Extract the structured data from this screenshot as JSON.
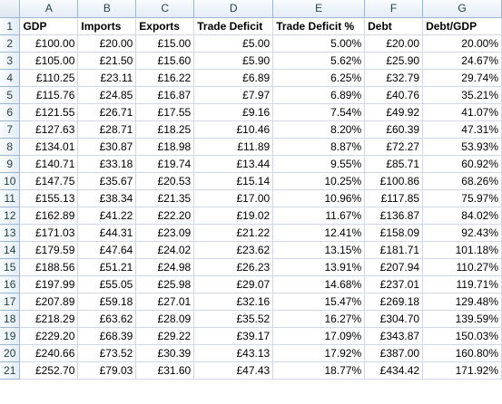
{
  "columns": [
    "A",
    "B",
    "C",
    "D",
    "E",
    "F",
    "G"
  ],
  "headers": [
    "GDP",
    "Imports",
    "Exports",
    "Trade Deficit",
    "Trade Deficit %",
    "Debt",
    "Debt/GDP"
  ],
  "rows": [
    {
      "n": "2",
      "cells": [
        "£100.00",
        "£20.00",
        "£15.00",
        "£5.00",
        "5.00%",
        "£20.00",
        "20.00%"
      ]
    },
    {
      "n": "3",
      "cells": [
        "£105.00",
        "£21.50",
        "£15.60",
        "£5.90",
        "5.62%",
        "£25.90",
        "24.67%"
      ]
    },
    {
      "n": "4",
      "cells": [
        "£110.25",
        "£23.11",
        "£16.22",
        "£6.89",
        "6.25%",
        "£32.79",
        "29.74%"
      ]
    },
    {
      "n": "5",
      "cells": [
        "£115.76",
        "£24.85",
        "£16.87",
        "£7.97",
        "6.89%",
        "£40.76",
        "35.21%"
      ]
    },
    {
      "n": "6",
      "cells": [
        "£121.55",
        "£26.71",
        "£17.55",
        "£9.16",
        "7.54%",
        "£49.92",
        "41.07%"
      ]
    },
    {
      "n": "7",
      "cells": [
        "£127.63",
        "£28.71",
        "£18.25",
        "£10.46",
        "8.20%",
        "£60.39",
        "47.31%"
      ]
    },
    {
      "n": "8",
      "cells": [
        "£134.01",
        "£30.87",
        "£18.98",
        "£11.89",
        "8.87%",
        "£72.27",
        "53.93%"
      ]
    },
    {
      "n": "9",
      "cells": [
        "£140.71",
        "£33.18",
        "£19.74",
        "£13.44",
        "9.55%",
        "£85.71",
        "60.92%"
      ]
    },
    {
      "n": "10",
      "cells": [
        "£147.75",
        "£35.67",
        "£20.53",
        "£15.14",
        "10.25%",
        "£100.86",
        "68.26%"
      ]
    },
    {
      "n": "11",
      "cells": [
        "£155.13",
        "£38.34",
        "£21.35",
        "£17.00",
        "10.96%",
        "£117.85",
        "75.97%"
      ]
    },
    {
      "n": "12",
      "cells": [
        "£162.89",
        "£41.22",
        "£22.20",
        "£19.02",
        "11.67%",
        "£136.87",
        "84.02%"
      ]
    },
    {
      "n": "13",
      "cells": [
        "£171.03",
        "£44.31",
        "£23.09",
        "£21.22",
        "12.41%",
        "£158.09",
        "92.43%"
      ]
    },
    {
      "n": "14",
      "cells": [
        "£179.59",
        "£47.64",
        "£24.02",
        "£23.62",
        "13.15%",
        "£181.71",
        "101.18%"
      ]
    },
    {
      "n": "15",
      "cells": [
        "£188.56",
        "£51.21",
        "£24.98",
        "£26.23",
        "13.91%",
        "£207.94",
        "110.27%"
      ]
    },
    {
      "n": "16",
      "cells": [
        "£197.99",
        "£55.05",
        "£25.98",
        "£29.07",
        "14.68%",
        "£237.01",
        "119.71%"
      ]
    },
    {
      "n": "17",
      "cells": [
        "£207.89",
        "£59.18",
        "£27.01",
        "£32.16",
        "15.47%",
        "£269.18",
        "129.48%"
      ]
    },
    {
      "n": "18",
      "cells": [
        "£218.29",
        "£63.62",
        "£28.09",
        "£35.52",
        "16.27%",
        "£304.70",
        "139.59%"
      ]
    },
    {
      "n": "19",
      "cells": [
        "£229.20",
        "£68.39",
        "£29.22",
        "£39.17",
        "17.09%",
        "£343.87",
        "150.03%"
      ]
    },
    {
      "n": "20",
      "cells": [
        "£240.66",
        "£73.52",
        "£30.39",
        "£43.13",
        "17.92%",
        "£387.00",
        "160.80%"
      ]
    },
    {
      "n": "21",
      "cells": [
        "£252.70",
        "£79.03",
        "£31.60",
        "£47.43",
        "18.77%",
        "£434.42",
        "171.92%"
      ]
    }
  ]
}
